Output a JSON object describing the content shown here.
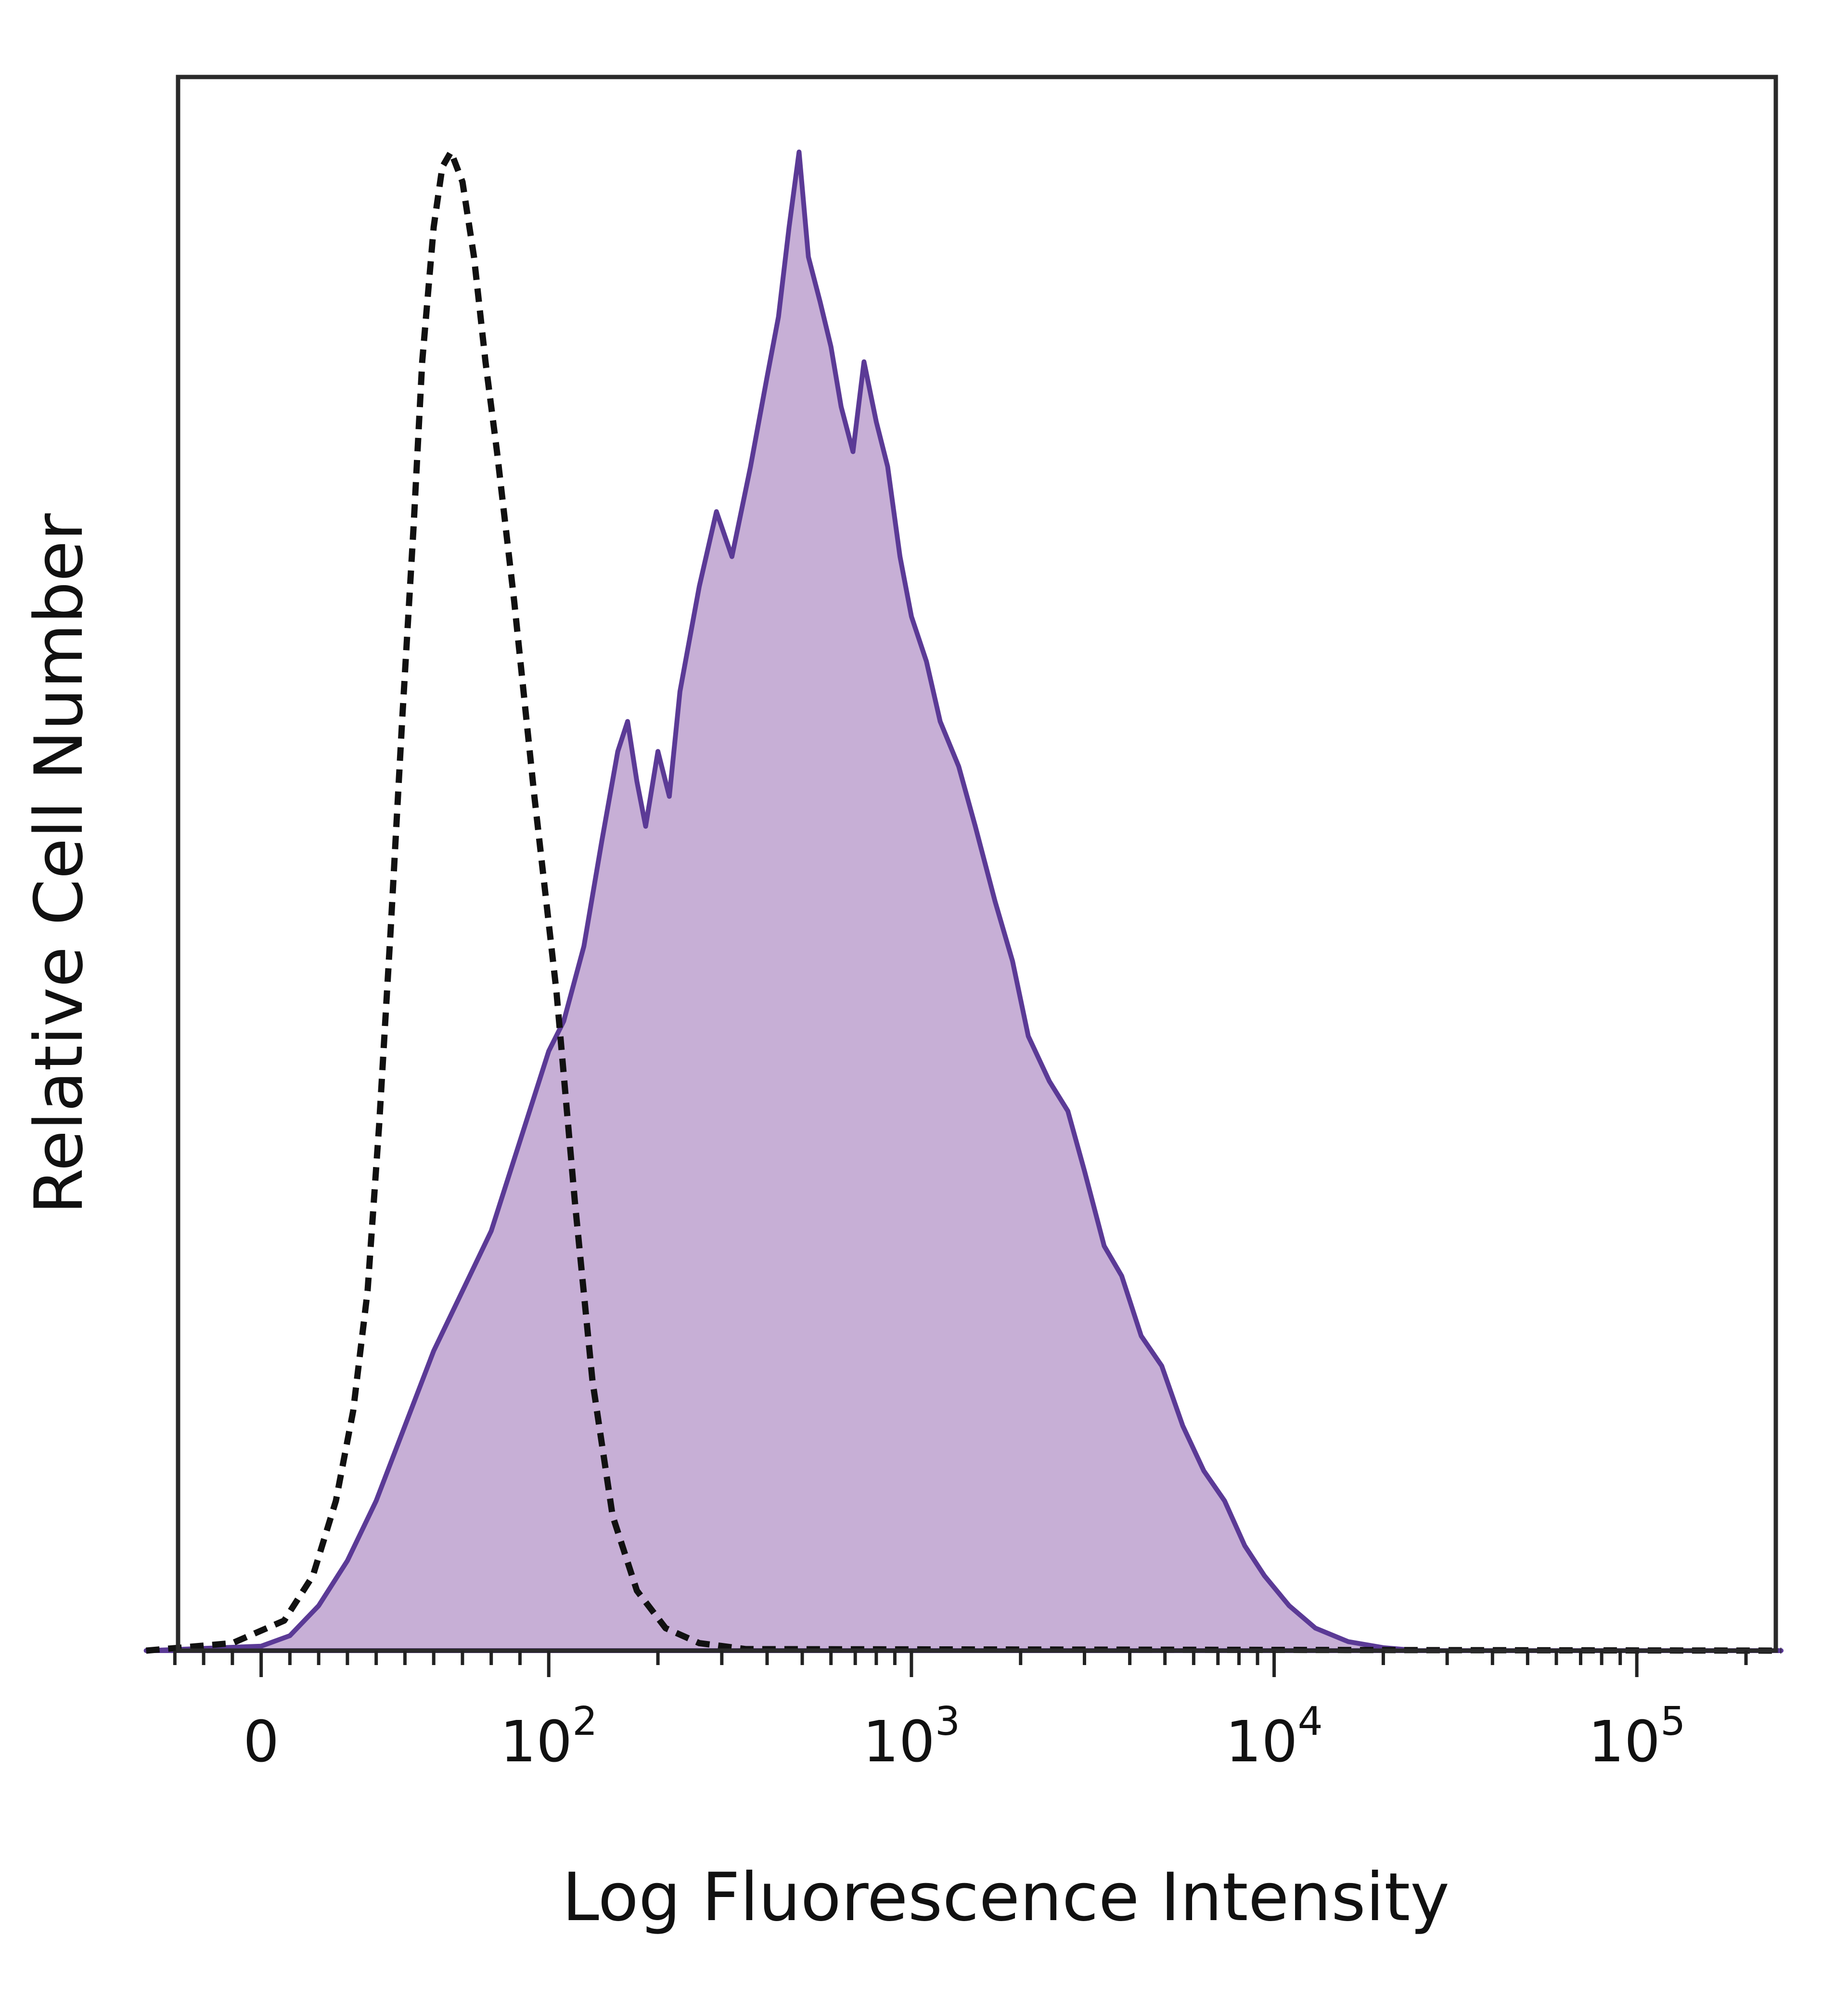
{
  "chart_data": {
    "type": "area",
    "title": "",
    "xlabel": "Log Fluorescence Intensity",
    "ylabel": "Relative Cell Number",
    "x_scale": "biexponential (log above 10^2)",
    "xlim": [
      -40,
      250000
    ],
    "ylim": [
      0,
      1.05
    ],
    "grid": false,
    "legend": "none",
    "x_ticks": [
      {
        "value": 0,
        "base": "0",
        "exp": ""
      },
      {
        "value": 100,
        "base": "10",
        "exp": "2"
      },
      {
        "value": 1000,
        "base": "10",
        "exp": "3"
      },
      {
        "value": 10000,
        "base": "10",
        "exp": "4"
      },
      {
        "value": 100000,
        "base": "10",
        "exp": "5"
      }
    ],
    "series": [
      {
        "style": "dashed-outline",
        "color": "#111111",
        "points": [
          [
            -40,
            0
          ],
          [
            -10,
            0.005
          ],
          [
            8,
            0.02
          ],
          [
            18,
            0.05
          ],
          [
            26,
            0.1
          ],
          [
            32,
            0.16
          ],
          [
            37,
            0.24
          ],
          [
            41,
            0.35
          ],
          [
            45,
            0.48
          ],
          [
            49,
            0.62
          ],
          [
            53,
            0.75
          ],
          [
            56,
            0.86
          ],
          [
            60,
            0.95
          ],
          [
            63,
            0.99
          ],
          [
            66,
            1.0
          ],
          [
            70,
            0.98
          ],
          [
            74,
            0.93
          ],
          [
            78,
            0.86
          ],
          [
            82,
            0.8
          ],
          [
            88,
            0.7
          ],
          [
            95,
            0.57
          ],
          [
            105,
            0.44
          ],
          [
            118,
            0.3
          ],
          [
            132,
            0.18
          ],
          [
            150,
            0.09
          ],
          [
            175,
            0.04
          ],
          [
            210,
            0.015
          ],
          [
            260,
            0.005
          ],
          [
            350,
            0.001
          ],
          [
            250000,
            0
          ]
        ]
      },
      {
        "style": "filled",
        "color": "#5b3a96",
        "fill": "#c7afd6",
        "points": [
          [
            -40,
            0
          ],
          [
            0,
            0.003
          ],
          [
            10,
            0.01
          ],
          [
            20,
            0.03
          ],
          [
            30,
            0.06
          ],
          [
            40,
            0.1
          ],
          [
            50,
            0.15
          ],
          [
            60,
            0.2
          ],
          [
            70,
            0.24
          ],
          [
            80,
            0.28
          ],
          [
            90,
            0.34
          ],
          [
            100,
            0.4
          ],
          [
            110,
            0.42
          ],
          [
            125,
            0.47
          ],
          [
            140,
            0.54
          ],
          [
            155,
            0.6
          ],
          [
            165,
            0.62
          ],
          [
            175,
            0.58
          ],
          [
            185,
            0.55
          ],
          [
            200,
            0.6
          ],
          [
            215,
            0.57
          ],
          [
            230,
            0.64
          ],
          [
            260,
            0.71
          ],
          [
            290,
            0.76
          ],
          [
            320,
            0.73
          ],
          [
            360,
            0.79
          ],
          [
            400,
            0.85
          ],
          [
            430,
            0.89
          ],
          [
            460,
            0.95
          ],
          [
            490,
            1.0
          ],
          [
            520,
            0.93
          ],
          [
            560,
            0.9
          ],
          [
            600,
            0.87
          ],
          [
            640,
            0.83
          ],
          [
            690,
            0.8
          ],
          [
            740,
            0.86
          ],
          [
            800,
            0.82
          ],
          [
            860,
            0.79
          ],
          [
            930,
            0.73
          ],
          [
            1000,
            0.69
          ],
          [
            1100,
            0.66
          ],
          [
            1200,
            0.62
          ],
          [
            1350,
            0.59
          ],
          [
            1500,
            0.55
          ],
          [
            1700,
            0.5
          ],
          [
            1900,
            0.46
          ],
          [
            2100,
            0.41
          ],
          [
            2400,
            0.38
          ],
          [
            2700,
            0.36
          ],
          [
            3000,
            0.32
          ],
          [
            3400,
            0.27
          ],
          [
            3800,
            0.25
          ],
          [
            4300,
            0.21
          ],
          [
            4900,
            0.19
          ],
          [
            5600,
            0.15
          ],
          [
            6400,
            0.12
          ],
          [
            7300,
            0.1
          ],
          [
            8300,
            0.07
          ],
          [
            9400,
            0.05
          ],
          [
            11000,
            0.03
          ],
          [
            13000,
            0.015
          ],
          [
            16000,
            0.006
          ],
          [
            20000,
            0.002
          ],
          [
            25000,
            0
          ],
          [
            250000,
            0
          ]
        ]
      }
    ]
  }
}
